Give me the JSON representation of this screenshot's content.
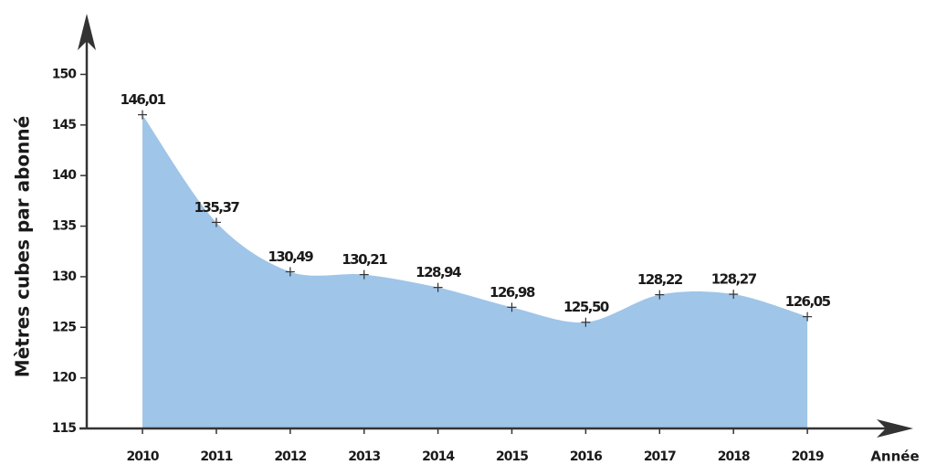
{
  "chart_data": {
    "type": "area",
    "y_label": "Mètres cubes par abonné",
    "x_label": "Année",
    "categories": [
      "2010",
      "2011",
      "2012",
      "2013",
      "2014",
      "2015",
      "2016",
      "2017",
      "2018",
      "2019"
    ],
    "values": [
      146.01,
      135.37,
      130.49,
      130.21,
      128.94,
      126.98,
      125.5,
      128.22,
      128.27,
      126.05
    ],
    "value_labels": [
      "146,01",
      "135,37",
      "130,49",
      "130,21",
      "128,94",
      "126,98",
      "125,50",
      "128,22",
      "128,27",
      "126,05"
    ],
    "color": "#9fc5e8",
    "ylim": [
      115,
      156
    ],
    "yticks": [
      115,
      120,
      125,
      130,
      135,
      140,
      145,
      150
    ],
    "grid": false
  }
}
